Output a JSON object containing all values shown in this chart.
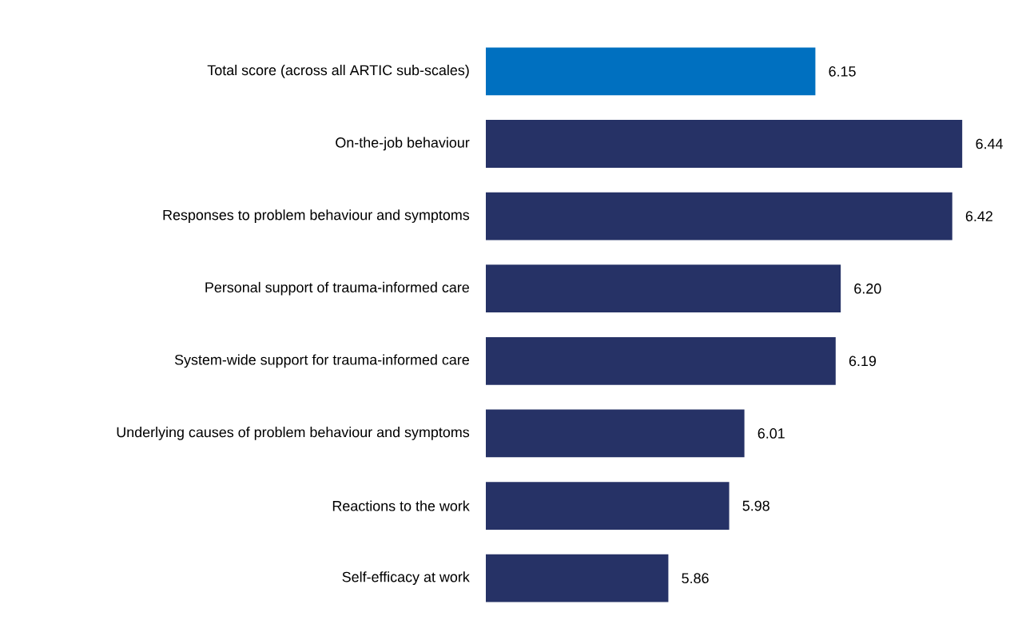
{
  "chart_data": {
    "type": "bar",
    "orientation": "horizontal",
    "categories": [
      "Total score (across all ARTIC sub-scales)",
      "On-the-job behaviour",
      "Responses to problem behaviour and symptoms",
      "Personal support of trauma-informed care",
      "System-wide support for trauma-informed care",
      "Underlying causes of problem behaviour and symptoms",
      "Reactions to the work",
      "Self-efficacy at work"
    ],
    "values": [
      6.15,
      6.44,
      6.42,
      6.2,
      6.19,
      6.01,
      5.98,
      5.86
    ],
    "colors": [
      "#0070c0",
      "#263266",
      "#263266",
      "#263266",
      "#263266",
      "#263266",
      "#263266",
      "#263266"
    ],
    "xlim": [
      5.5,
      6.44
    ],
    "tick_labels": "y",
    "value_labels": [
      "6.15",
      "6.44",
      "6.42",
      "6.20",
      "6.19",
      "6.01",
      "5.98",
      "5.86"
    ]
  }
}
